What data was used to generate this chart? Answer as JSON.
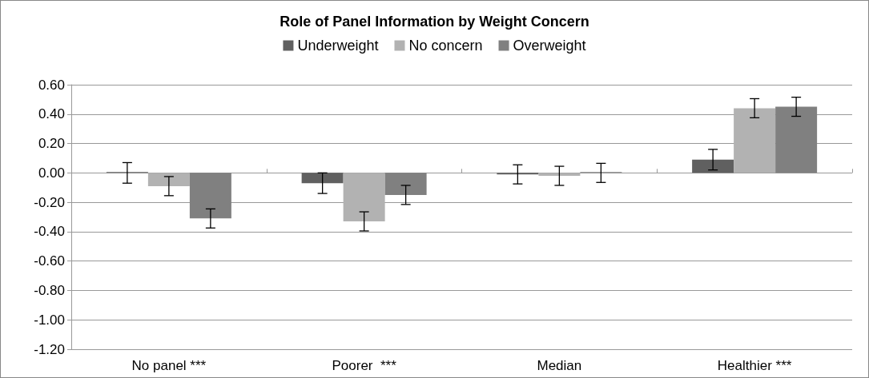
{
  "chart_data": {
    "type": "bar",
    "title": "Role of Panel Information by Weight Concern",
    "categories": [
      "No panel ***",
      "Poorer  ***",
      "Median",
      "Healthier ***"
    ],
    "series": [
      {
        "name": "Underweight",
        "color": "#606060",
        "values": [
          0.0,
          -0.07,
          -0.01,
          0.09
        ],
        "errors": [
          0.07,
          0.07,
          0.065,
          0.07
        ]
      },
      {
        "name": "No concern",
        "color": "#b2b2b2",
        "values": [
          -0.09,
          -0.33,
          -0.02,
          0.44
        ],
        "errors": [
          0.065,
          0.065,
          0.065,
          0.065
        ]
      },
      {
        "name": "Overweight",
        "color": "#808080",
        "values": [
          -0.31,
          -0.15,
          0.0,
          0.45
        ],
        "errors": [
          0.065,
          0.065,
          0.065,
          0.065
        ]
      }
    ],
    "ylim": [
      -1.2,
      0.6
    ],
    "yticks": [
      {
        "value": -1.2,
        "label": "-1.20"
      },
      {
        "value": -1,
        "label": "-1.00"
      },
      {
        "value": -0.8,
        "label": "-0.80"
      },
      {
        "value": -0.6,
        "label": "-0.60"
      },
      {
        "value": -0.4,
        "label": "-0.40"
      },
      {
        "value": -0.2,
        "label": "-0.20"
      },
      {
        "value": 0,
        "label": "0.00"
      },
      {
        "value": 0.2,
        "label": "0.20"
      },
      {
        "value": 0.4,
        "label": "0.40"
      },
      {
        "value": 0.6,
        "label": "0.60"
      }
    ],
    "grid": "y",
    "legend": "top"
  }
}
